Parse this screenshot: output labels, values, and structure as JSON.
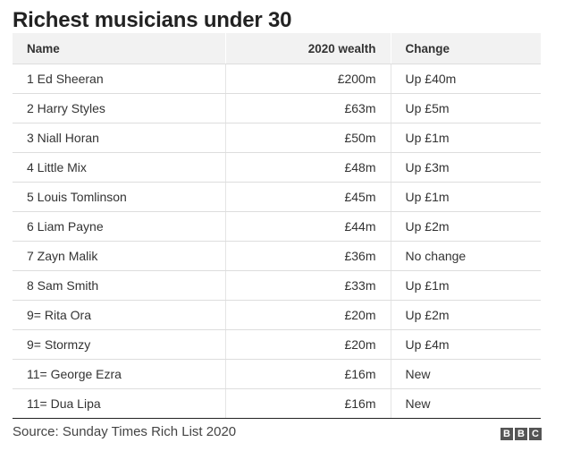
{
  "chart_data": {
    "type": "table",
    "title": "Richest musicians under 30",
    "columns": [
      "Name",
      "2020 wealth",
      "Change"
    ],
    "rows": [
      {
        "name": "1 Ed Sheeran",
        "wealth": "£200m",
        "change": "Up £40m"
      },
      {
        "name": "2 Harry Styles",
        "wealth": "£63m",
        "change": "Up £5m"
      },
      {
        "name": "3 Niall Horan",
        "wealth": "£50m",
        "change": "Up £1m"
      },
      {
        "name": "4 Little Mix",
        "wealth": "£48m",
        "change": "Up £3m"
      },
      {
        "name": "5 Louis Tomlinson",
        "wealth": "£45m",
        "change": "Up £1m"
      },
      {
        "name": "6 Liam Payne",
        "wealth": "£44m",
        "change": "Up £2m"
      },
      {
        "name": "7 Zayn Malik",
        "wealth": "£36m",
        "change": "No change"
      },
      {
        "name": "8 Sam Smith",
        "wealth": "£33m",
        "change": "Up £1m"
      },
      {
        "name": "9= Rita Ora",
        "wealth": "£20m",
        "change": "Up £2m"
      },
      {
        "name": "9= Stormzy",
        "wealth": "£20m",
        "change": "Up £4m"
      },
      {
        "name": "11= George Ezra",
        "wealth": "£16m",
        "change": "New"
      },
      {
        "name": "11= Dua Lipa",
        "wealth": "£16m",
        "change": "New"
      }
    ],
    "source": "Source: Sunday Times Rich List 2020"
  },
  "logo": {
    "letters": [
      "B",
      "B",
      "C"
    ]
  },
  "colors": {
    "header_bg": "#f2f2f2",
    "text": "#222222",
    "border": "#dddddd",
    "logo_bg": "#555555"
  }
}
